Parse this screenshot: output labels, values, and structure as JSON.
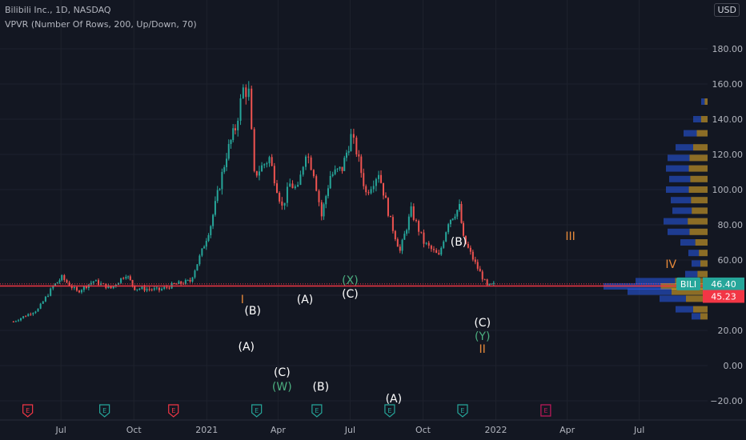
{
  "header": {
    "symbol_line": "Bilibili Inc., 1D, NASDAQ",
    "indicator_line": "VPVR (Number Of Rows, 200, Up/Down, 70)",
    "currency": "USD"
  },
  "colors": {
    "background": "#131722",
    "up": "#26a69a",
    "down": "#ef5350",
    "wave_white": "#ffffff",
    "wave_green": "#4caf80",
    "wave_orange": "#e88a3a",
    "vp_up": "#2962ff",
    "vp_down": "#f0b429",
    "price_line": "#f23645"
  },
  "price_axis": {
    "ticks": [
      "180.00",
      "160.00",
      "140.00",
      "120.00",
      "100.00",
      "80.00",
      "60.00",
      "40.00",
      "20.00",
      "0.00",
      "−20.00"
    ],
    "values": [
      180,
      160,
      140,
      120,
      100,
      80,
      60,
      40,
      20,
      0,
      -20
    ],
    "current_label": "BILI",
    "current_value": "46.40",
    "red_value": "45.23"
  },
  "time_axis": {
    "labels": [
      "Jul",
      "Oct",
      "2021",
      "Apr",
      "Jul",
      "Oct",
      "2022",
      "Apr",
      "Jul"
    ]
  },
  "earnings_markers": [
    {
      "label": "E",
      "type": "red"
    },
    {
      "label": "E",
      "type": "green"
    },
    {
      "label": "E",
      "type": "red"
    },
    {
      "label": "E",
      "type": "green"
    },
    {
      "label": "E",
      "type": "green"
    },
    {
      "label": "E",
      "type": "green"
    },
    {
      "label": "E",
      "type": "green"
    },
    {
      "label": "E",
      "type": "future"
    }
  ],
  "wave_labels": [
    {
      "text": "I",
      "color": "orange"
    },
    {
      "text": "(B)",
      "color": "white"
    },
    {
      "text": "(A)",
      "color": "white"
    },
    {
      "text": "(C)",
      "color": "white"
    },
    {
      "text": "(W)",
      "color": "green"
    },
    {
      "text": "(A)",
      "color": "white"
    },
    {
      "text": "(B)",
      "color": "white"
    },
    {
      "text": "(X)",
      "color": "green"
    },
    {
      "text": "(C)",
      "color": "white"
    },
    {
      "text": "(A)",
      "color": "white"
    },
    {
      "text": "(B)",
      "color": "white"
    },
    {
      "text": "(C)",
      "color": "white"
    },
    {
      "text": "(Y)",
      "color": "green"
    },
    {
      "text": "II",
      "color": "orange"
    },
    {
      "text": "III",
      "color": "orange"
    },
    {
      "text": "IV",
      "color": "orange"
    }
  ],
  "chart_data": {
    "type": "candlestick",
    "price_path": [
      [
        "2020-05-01",
        25
      ],
      [
        "2020-06-01",
        32
      ],
      [
        "2020-06-20",
        45
      ],
      [
        "2020-07-01",
        50
      ],
      [
        "2020-07-20",
        42
      ],
      [
        "2020-08-10",
        48
      ],
      [
        "2020-09-01",
        44
      ],
      [
        "2020-09-20",
        52
      ],
      [
        "2020-10-01",
        44
      ],
      [
        "2020-11-01",
        43
      ],
      [
        "2020-11-20",
        46
      ],
      [
        "2020-12-10",
        48
      ],
      [
        "2020-12-25",
        65
      ],
      [
        "2021-01-05",
        80
      ],
      [
        "2021-01-25",
        120
      ],
      [
        "2021-02-05",
        135
      ],
      [
        "2021-02-15",
        157
      ],
      [
        "2021-02-22",
        155
      ],
      [
        "2021-03-01",
        108
      ],
      [
        "2021-03-20",
        118
      ],
      [
        "2021-04-05",
        90
      ],
      [
        "2021-04-15",
        103
      ],
      [
        "2021-04-25",
        100
      ],
      [
        "2021-05-05",
        122
      ],
      [
        "2021-05-15",
        110
      ],
      [
        "2021-05-25",
        85
      ],
      [
        "2021-06-05",
        108
      ],
      [
        "2021-06-20",
        112
      ],
      [
        "2021-07-01",
        130
      ],
      [
        "2021-07-08",
        122
      ],
      [
        "2021-07-20",
        98
      ],
      [
        "2021-08-05",
        110
      ],
      [
        "2021-08-20",
        82
      ],
      [
        "2021-09-01",
        65
      ],
      [
        "2021-09-15",
        88
      ],
      [
        "2021-10-01",
        70
      ],
      [
        "2021-10-20",
        62
      ],
      [
        "2021-11-01",
        82
      ],
      [
        "2021-11-15",
        90
      ],
      [
        "2021-11-20",
        72
      ],
      [
        "2021-12-05",
        58
      ],
      [
        "2021-12-20",
        45
      ],
      [
        "2021-12-31",
        46.4
      ]
    ]
  }
}
